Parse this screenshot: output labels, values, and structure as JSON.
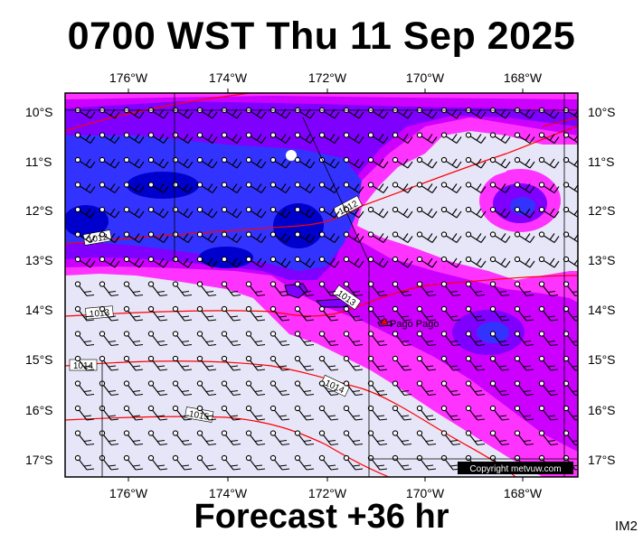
{
  "title": "0700 WST Thu 11 Sep 2025",
  "footer": "Forecast +36 hr",
  "corner_tag": "IM2",
  "copyright": "Copyright metvuw.com",
  "place_label": "Pago Pago",
  "lon_labels": [
    "176°W",
    "174°W",
    "172°W",
    "170°W",
    "168°W"
  ],
  "lat_labels": [
    "10°S",
    "11°S",
    "12°S",
    "13°S",
    "14°S",
    "15°S",
    "16°S",
    "17°S"
  ],
  "isobar_labels": [
    "1012",
    "1012",
    "1013",
    "1013",
    "1014",
    "1014",
    "1015"
  ],
  "colors": {
    "background_low": "#e6e6f8",
    "rain_light": "#ff33ff",
    "rain_moderate": "#cc00ff",
    "rain_heavy": "#8000ff",
    "rain_very_heavy": "#3333ff",
    "rain_extreme": "#0000cc",
    "isobar": "#ff0000"
  }
}
